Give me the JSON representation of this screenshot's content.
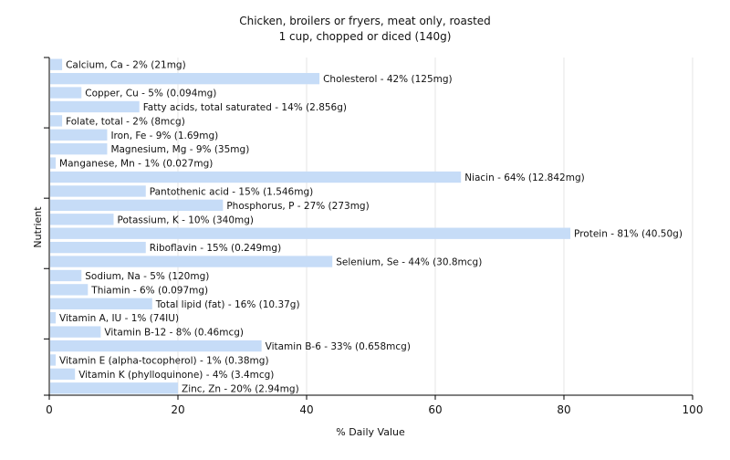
{
  "chart_data": {
    "type": "bar",
    "orientation": "horizontal",
    "title": "Chicken, broilers or fryers, meat only, roasted",
    "subtitle": "1 cup, chopped or diced (140g)",
    "xlabel": "% Daily Value",
    "ylabel": "Nutrient",
    "xlim": [
      0,
      100
    ],
    "xticks": [
      0,
      20,
      40,
      60,
      80,
      100
    ],
    "grid": true,
    "bar_color": "#c6dcf7",
    "categories": [
      "Calcium, Ca",
      "Cholesterol",
      "Copper, Cu",
      "Fatty acids, total saturated",
      "Folate, total",
      "Iron, Fe",
      "Magnesium, Mg",
      "Manganese, Mn",
      "Niacin",
      "Pantothenic acid",
      "Phosphorus, P",
      "Potassium, K",
      "Protein",
      "Riboflavin",
      "Selenium, Se",
      "Sodium, Na",
      "Thiamin",
      "Total lipid (fat)",
      "Vitamin A, IU",
      "Vitamin B-12",
      "Vitamin B-6",
      "Vitamin E (alpha-tocopherol)",
      "Vitamin K (phylloquinone)",
      "Zinc, Zn"
    ],
    "values": [
      2,
      42,
      5,
      14,
      2,
      9,
      9,
      1,
      64,
      15,
      27,
      10,
      81,
      15,
      44,
      5,
      6,
      16,
      1,
      8,
      33,
      1,
      4,
      20
    ],
    "labels": [
      "Calcium, Ca - 2% (21mg)",
      "Cholesterol - 42% (125mg)",
      "Copper, Cu - 5% (0.094mg)",
      "Fatty acids, total saturated - 14% (2.856g)",
      "Folate, total - 2% (8mcg)",
      "Iron, Fe - 9% (1.69mg)",
      "Magnesium, Mg - 9% (35mg)",
      "Manganese, Mn - 1% (0.027mg)",
      "Niacin - 64% (12.842mg)",
      "Pantothenic acid - 15% (1.546mg)",
      "Phosphorus, P - 27% (273mg)",
      "Potassium, K - 10% (340mg)",
      "Protein - 81% (40.50g)",
      "Riboflavin - 15% (0.249mg)",
      "Selenium, Se - 44% (30.8mcg)",
      "Sodium, Na - 5% (120mg)",
      "Thiamin - 6% (0.097mg)",
      "Total lipid (fat) - 16% (10.37g)",
      "Vitamin A, IU - 1% (74IU)",
      "Vitamin B-12 - 8% (0.46mcg)",
      "Vitamin B-6 - 33% (0.658mcg)",
      "Vitamin E (alpha-tocopherol) - 1% (0.38mg)",
      "Vitamin K (phylloquinone) - 4% (3.4mcg)",
      "Zinc, Zn - 20% (2.94mg)"
    ]
  }
}
